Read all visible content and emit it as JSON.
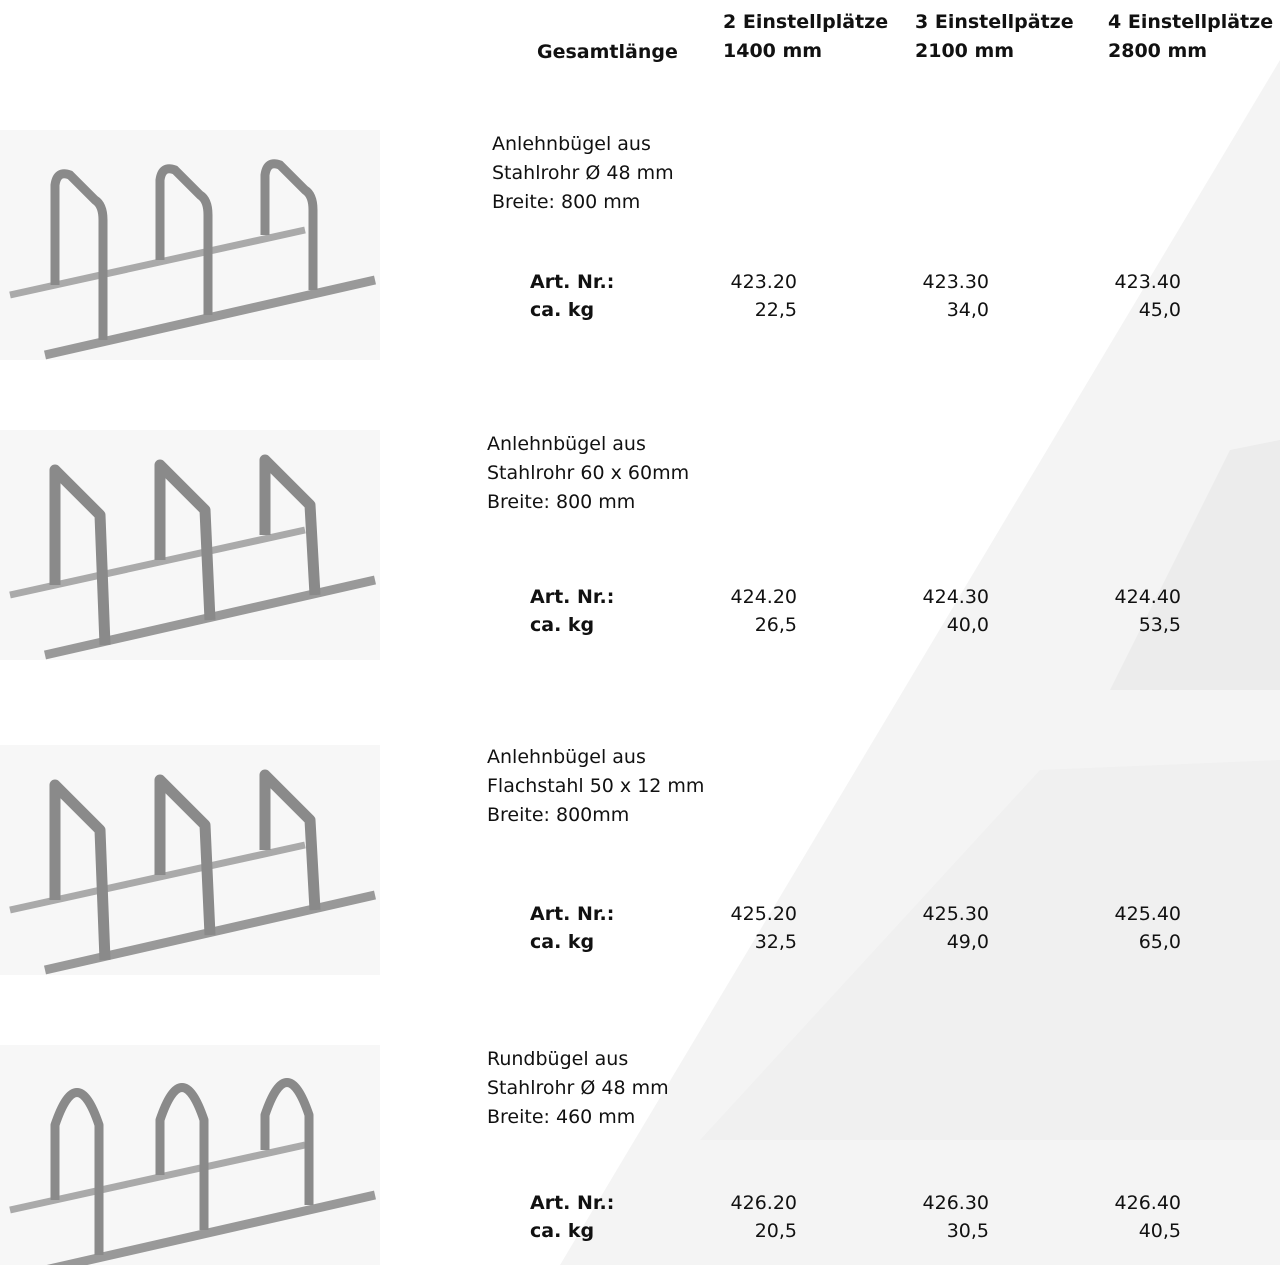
{
  "header": {
    "label": "Gesamtlänge",
    "columns": [
      {
        "places": "2 Einstellplätze",
        "length": "1400 mm"
      },
      {
        "places": "3 Einstellpätze",
        "length": "2100 mm"
      },
      {
        "places": "4 Einstellplätze",
        "length": "2800 mm"
      }
    ]
  },
  "products": [
    {
      "description": [
        "Anlehnbügel aus",
        "Stahlrohr Ø 48 mm",
        "Breite: 800 mm"
      ],
      "art_label": "Art. Nr.:",
      "kg_label": "ca. kg",
      "art_numbers": [
        "423.20",
        "423.30",
        "423.40"
      ],
      "weights": [
        "22,5",
        "34,0",
        "45,0"
      ]
    },
    {
      "description": [
        "Anlehnbügel aus",
        "Stahlrohr 60 x 60mm",
        "Breite: 800 mm"
      ],
      "art_label": "Art. Nr.:",
      "kg_label": "ca. kg",
      "art_numbers": [
        "424.20",
        "424.30",
        "424.40"
      ],
      "weights": [
        "26,5",
        "40,0",
        "53,5"
      ]
    },
    {
      "description": [
        "Anlehnbügel aus",
        "Flachstahl 50 x 12 mm",
        "Breite: 800mm"
      ],
      "art_label": "Art. Nr.:",
      "kg_label": "ca. kg",
      "art_numbers": [
        "425.20",
        "425.30",
        "425.40"
      ],
      "weights": [
        "32,5",
        "49,0",
        "65,0"
      ]
    },
    {
      "description": [
        "Rundbügel aus",
        "Stahlrohr Ø 48 mm",
        "Breite: 460 mm"
      ],
      "art_label": "Art. Nr.:",
      "kg_label": "ca. kg",
      "art_numbers": [
        "426.20",
        "426.30",
        "426.40"
      ],
      "weights": [
        "20,5",
        "30,5",
        "40,5"
      ]
    }
  ]
}
